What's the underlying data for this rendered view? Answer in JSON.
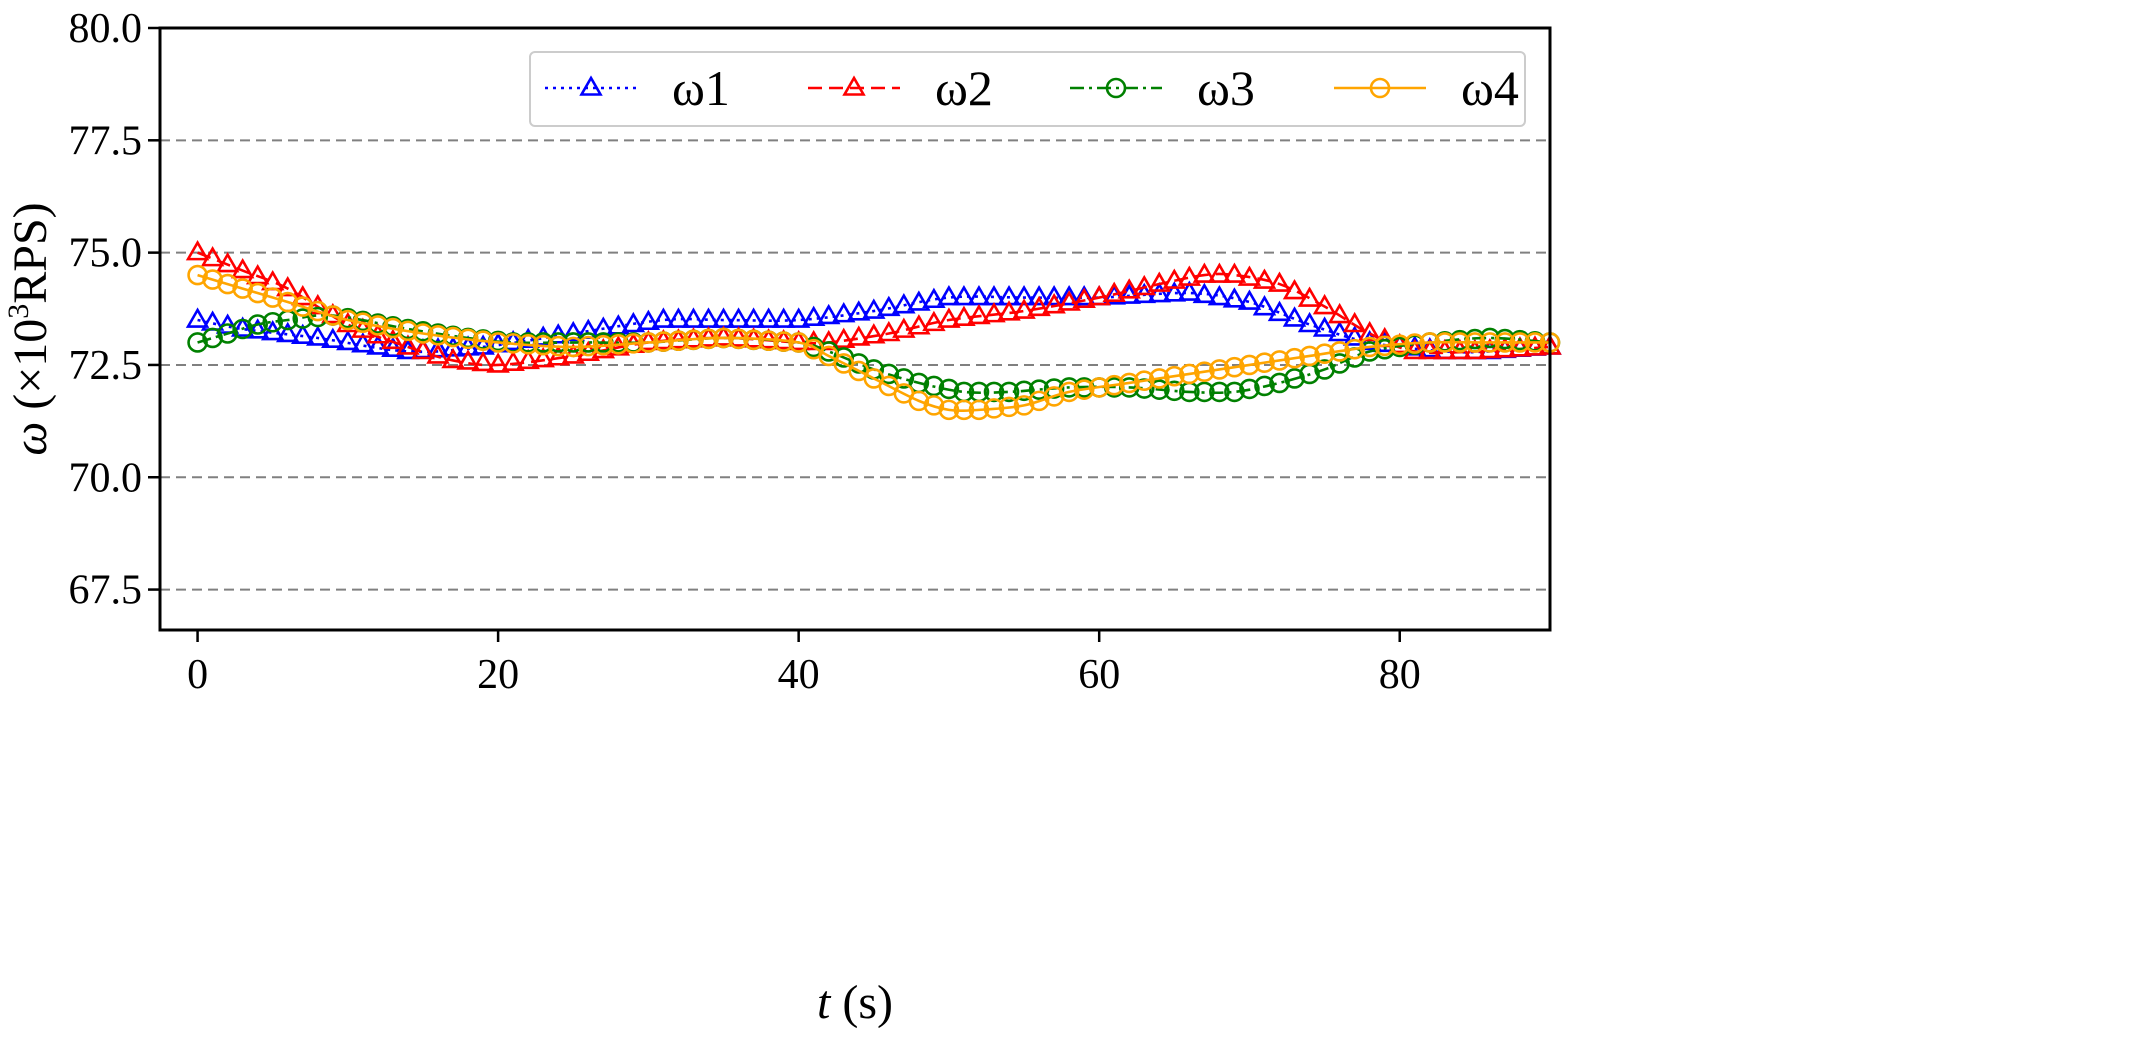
{
  "chart_data": {
    "type": "line",
    "title": "",
    "xlabel_italic": "t",
    "xlabel_unit": " (s)",
    "ylabel_italic": "ω",
    "ylabel_prefix": " (×10",
    "ylabel_sup": "3",
    "ylabel_suffix": "RPS)",
    "xlim": [
      -2.5,
      90
    ],
    "ylim": [
      66.6,
      80
    ],
    "xticks": [
      0,
      20,
      40,
      60,
      80
    ],
    "xtick_labels": [
      "0",
      "20",
      "40",
      "60",
      "80"
    ],
    "yticks": [
      67.5,
      70.0,
      72.5,
      75.0,
      77.5,
      80.0
    ],
    "ytick_labels": [
      "67.5",
      "70.0",
      "72.5",
      "75.0",
      "77.5",
      "80.0"
    ],
    "grid": "y-dashed",
    "legend_position": "top-right",
    "series": [
      {
        "name": "ω1",
        "color": "#0000ff",
        "linestyle": "dotted",
        "marker": "triangle",
        "x": [
          0,
          3,
          8,
          14,
          19,
          25,
          31,
          35,
          40,
          45,
          50,
          55,
          60,
          66,
          70,
          74,
          78,
          83,
          86,
          90
        ],
        "y": [
          73.5,
          73.3,
          73.1,
          72.8,
          72.9,
          73.2,
          73.5,
          73.5,
          73.5,
          73.7,
          74.0,
          74.0,
          74.0,
          74.1,
          73.9,
          73.4,
          73.0,
          72.8,
          72.8,
          72.9
        ]
      },
      {
        "name": "ω2",
        "color": "#ff0000",
        "linestyle": "dashed",
        "marker": "triangle",
        "x": [
          0,
          3,
          6,
          10,
          14,
          17,
          20,
          25,
          30,
          35,
          40,
          42,
          46,
          50,
          55,
          60,
          64,
          67,
          69,
          72,
          75,
          78,
          81,
          85,
          90
        ],
        "y": [
          75.0,
          74.6,
          74.2,
          73.4,
          72.9,
          72.6,
          72.5,
          72.7,
          73.0,
          73.1,
          73.0,
          73.0,
          73.2,
          73.5,
          73.7,
          74.0,
          74.3,
          74.5,
          74.5,
          74.3,
          73.8,
          73.2,
          72.8,
          72.8,
          72.9
        ]
      },
      {
        "name": "ω3",
        "color": "#008000",
        "linestyle": "dashdot",
        "marker": "circle",
        "x": [
          0,
          2,
          4,
          6,
          9,
          14,
          18,
          21,
          26,
          30,
          35,
          40,
          42,
          45,
          48,
          51,
          54,
          58,
          62,
          66,
          69,
          72,
          75,
          78,
          82,
          86,
          90
        ],
        "y": [
          73.0,
          73.2,
          73.4,
          73.5,
          73.6,
          73.3,
          73.1,
          73.0,
          73.0,
          73.0,
          73.1,
          73.0,
          72.8,
          72.4,
          72.1,
          71.9,
          71.9,
          72.0,
          72.0,
          71.9,
          71.9,
          72.1,
          72.4,
          72.8,
          73.0,
          73.1,
          73.0
        ]
      },
      {
        "name": "ω4",
        "color": "#ffa500",
        "linestyle": "solid",
        "marker": "circle",
        "x": [
          0,
          3,
          6,
          10,
          15,
          20,
          25,
          30,
          35,
          40,
          42,
          45,
          48,
          50,
          52,
          55,
          58,
          62,
          66,
          70,
          74,
          78,
          82,
          86,
          90
        ],
        "y": [
          74.5,
          74.2,
          73.9,
          73.5,
          73.2,
          73.0,
          72.9,
          73.0,
          73.1,
          73.0,
          72.7,
          72.2,
          71.7,
          71.5,
          71.5,
          71.6,
          71.9,
          72.1,
          72.3,
          72.5,
          72.7,
          72.9,
          73.0,
          73.0,
          73.0
        ]
      }
    ]
  }
}
